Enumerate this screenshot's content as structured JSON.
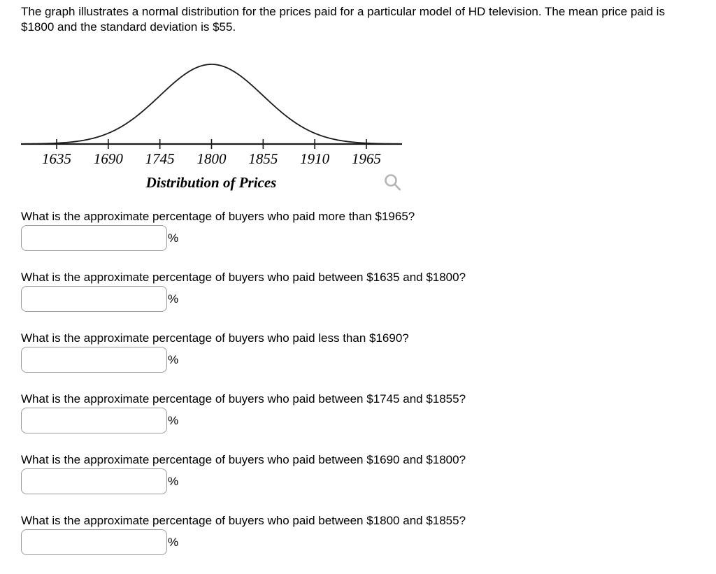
{
  "intro": {
    "text": "The graph illustrates a normal distribution for the prices paid for a particular model of HD television. The mean price paid is $1800 and the standard deviation is $55."
  },
  "chart_data": {
    "type": "line",
    "subtype": "normal-distribution-bell-curve",
    "title": "Distribution of Prices",
    "mean": 1800,
    "std_dev": 55,
    "x_ticks": [
      1635,
      1690,
      1745,
      1800,
      1855,
      1910,
      1965
    ],
    "x_tick_labels": [
      "1635",
      "1690",
      "1745",
      "1800",
      "1855",
      "1910",
      "1965"
    ],
    "x_range": [
      1597,
      2003
    ],
    "grid": false,
    "legend": false,
    "curve_color": "#1a1a1a",
    "axis_color": "#1a1a1a"
  },
  "icons": {
    "magnifier": "magnifying-glass-zoom",
    "magnifier_color": "#b5b5b5"
  },
  "questions": [
    {
      "label": "What is the approximate percentage of buyers who paid more than $1965?",
      "value": "",
      "unit": "%"
    },
    {
      "label": "What is the approximate percentage of buyers who paid between $1635 and $1800?",
      "value": "",
      "unit": "%"
    },
    {
      "label": "What is the approximate percentage of buyers who paid less than $1690?",
      "value": "",
      "unit": "%"
    },
    {
      "label": "What is the approximate percentage of buyers who paid between $1745 and $1855?",
      "value": "",
      "unit": "%"
    },
    {
      "label": "What is the approximate percentage of buyers who paid between $1690 and $1800?",
      "value": "",
      "unit": "%"
    },
    {
      "label": "What is the approximate percentage of buyers who paid between $1800 and $1855?",
      "value": "",
      "unit": "%"
    }
  ]
}
